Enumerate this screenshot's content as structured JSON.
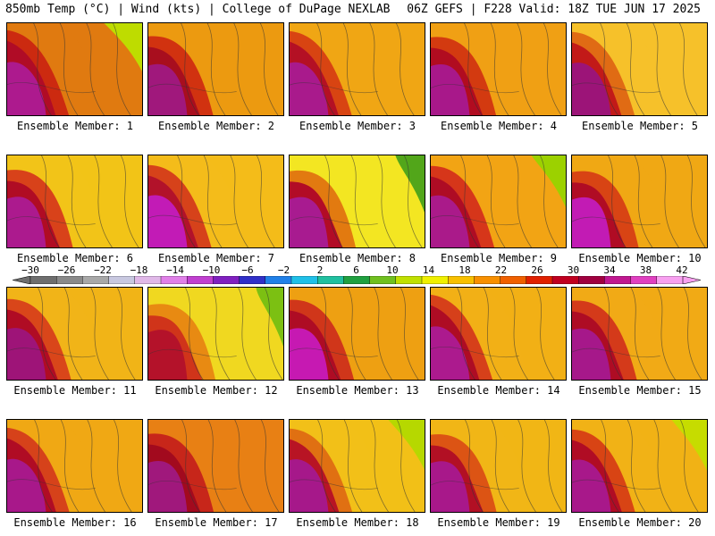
{
  "header": {
    "title_left": "850mb Temp (°C) | Wind (kts) | College of DuPage NEXLAB",
    "title_right": "06Z GEFS | F228 Valid: 18Z TUE JUN 17 2025"
  },
  "members": [
    {
      "label": "Ensemble Member: 1",
      "palette": [
        "#e07a10",
        "#cc2a10",
        "#b00c26",
        "#ad1a8e"
      ],
      "accent": "#bedc00"
    },
    {
      "label": "Ensemble Member: 2",
      "palette": [
        "#ec9a10",
        "#d13210",
        "#a80e1e",
        "#a0187c"
      ],
      "accent": null
    },
    {
      "label": "Ensemble Member: 3",
      "palette": [
        "#f0a614",
        "#d84412",
        "#b41024",
        "#a91a8c"
      ],
      "accent": null
    },
    {
      "label": "Ensemble Member: 4",
      "palette": [
        "#f0a014",
        "#d33a10",
        "#b10c20",
        "#a8188a"
      ],
      "accent": null
    },
    {
      "label": "Ensemble Member: 5",
      "palette": [
        "#f6c12a",
        "#e06b14",
        "#c21a18",
        "#9c1478"
      ],
      "accent": null
    },
    {
      "label": "Ensemble Member: 6",
      "palette": [
        "#f2c418",
        "#d8421a",
        "#b00c24",
        "#ac1a8e"
      ],
      "accent": null
    },
    {
      "label": "Ensemble Member: 7",
      "palette": [
        "#f4bc1a",
        "#d6421a",
        "#b2122a",
        "#c21bb6"
      ],
      "accent": null
    },
    {
      "label": "Ensemble Member: 8",
      "palette": [
        "#f3e622",
        "#e27a10",
        "#b20c26",
        "#a81b90"
      ],
      "accent": "#52a61a"
    },
    {
      "label": "Ensemble Member: 9",
      "palette": [
        "#f2a414",
        "#d6361a",
        "#ae0c24",
        "#aa1a8a"
      ],
      "accent": "#9cd100"
    },
    {
      "label": "Ensemble Member: 10",
      "palette": [
        "#f0a814",
        "#d84414",
        "#b00c24",
        "#c21bb4"
      ],
      "accent": null
    },
    {
      "label": "Ensemble Member: 11",
      "palette": [
        "#f1b418",
        "#d9461a",
        "#b00c24",
        "#9e1478"
      ],
      "accent": null
    },
    {
      "label": "Ensemble Member: 12",
      "palette": [
        "#f0d820",
        "#e88a12",
        "#d0341a",
        "#b4122a"
      ],
      "accent": "#7cc012"
    },
    {
      "label": "Ensemble Member: 13",
      "palette": [
        "#eea012",
        "#d0361a",
        "#ae0c24",
        "#c619b2"
      ],
      "accent": null
    },
    {
      "label": "Ensemble Member: 14",
      "palette": [
        "#f2b016",
        "#d6401a",
        "#ae0c24",
        "#ac1a8e"
      ],
      "accent": null
    },
    {
      "label": "Ensemble Member: 15",
      "palette": [
        "#f1aa16",
        "#d43a1a",
        "#ae0c24",
        "#a6188a"
      ],
      "accent": null
    },
    {
      "label": "Ensemble Member: 16",
      "palette": [
        "#f0a814",
        "#d6421a",
        "#b00c24",
        "#a8188a"
      ],
      "accent": null
    },
    {
      "label": "Ensemble Member: 17",
      "palette": [
        "#e88014",
        "#c7261a",
        "#a20a1e",
        "#a0187c"
      ],
      "accent": null
    },
    {
      "label": "Ensemble Member: 18",
      "palette": [
        "#f2c018",
        "#e07012",
        "#b81424",
        "#a6188a"
      ],
      "accent": "#b6d800"
    },
    {
      "label": "Ensemble Member: 19",
      "palette": [
        "#f1b616",
        "#dc5414",
        "#b21024",
        "#a8188a"
      ],
      "accent": null
    },
    {
      "label": "Ensemble Member: 20",
      "palette": [
        "#f1b216",
        "#d84414",
        "#b00c24",
        "#a8188a"
      ],
      "accent": "#c6dc00"
    }
  ],
  "colorbar": {
    "ticks": [
      "−30",
      "−26",
      "−22",
      "−18",
      "−14",
      "−10",
      "−6",
      "−2",
      "2",
      "6",
      "10",
      "14",
      "18",
      "22",
      "26",
      "30",
      "34",
      "38",
      "42"
    ],
    "colors": [
      "#6e6e6e",
      "#8a8a8a",
      "#a8a8a8",
      "#c8c8e0",
      "#e0b8e8",
      "#e080e8",
      "#c040d0",
      "#8020c0",
      "#3030c8",
      "#2080e8",
      "#20c0e8",
      "#20c0a0",
      "#20a040",
      "#70c020",
      "#c0e000",
      "#f0f000",
      "#f8c000",
      "#f89000",
      "#f06000",
      "#e02000",
      "#c00020",
      "#a00040",
      "#c01890",
      "#e040c0",
      "#f8a0f0"
    ]
  }
}
